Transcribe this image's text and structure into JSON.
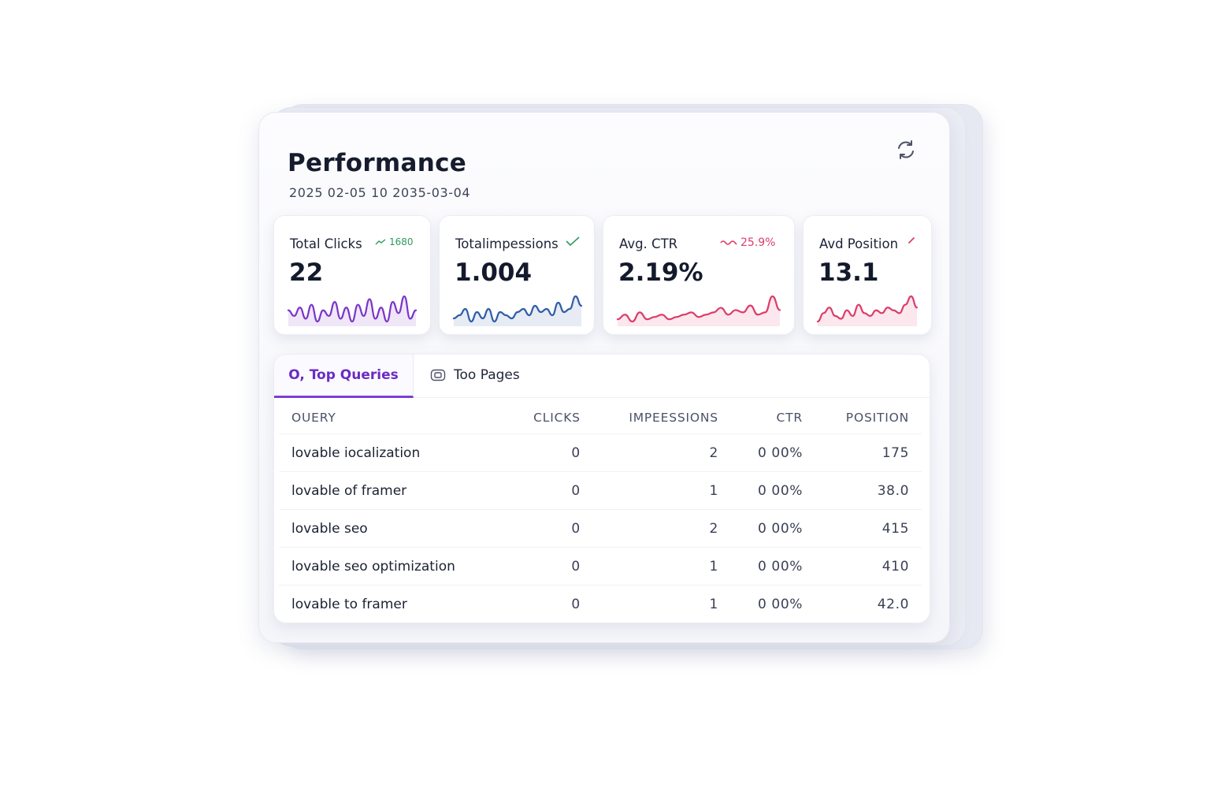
{
  "header": {
    "title": "Performance",
    "date_range": "2025  02-05 10 2035-03-04"
  },
  "kpis": [
    {
      "label": "Total Clicks",
      "value": "22",
      "trend": "1680",
      "color": "#7a34c9",
      "trend_color": "#2e9b5e",
      "series": [
        6,
        4,
        7,
        3,
        8,
        2,
        6,
        4,
        9,
        3,
        7,
        2,
        8,
        4,
        10,
        3,
        7,
        2,
        9,
        5,
        11,
        3,
        6
      ]
    },
    {
      "label": "Totalimpessions",
      "value": "1.004",
      "trend": "",
      "color": "#2f5ea8",
      "trend_color": "#2e9b5e",
      "series": [
        3,
        4,
        6,
        2,
        5,
        3,
        6,
        2,
        5,
        4,
        3,
        5,
        6,
        4,
        7,
        5,
        6,
        4,
        8,
        5,
        6,
        10,
        7
      ]
    },
    {
      "label": "Avg. CTR",
      "value": "2.19%",
      "trend": "25.9%",
      "color": "#dc3d6a",
      "trend_color": "#dc3d6a",
      "series": [
        3,
        5,
        2,
        6,
        3,
        4,
        5,
        3,
        4,
        5,
        6,
        4,
        5,
        6,
        8,
        5,
        7,
        6,
        9,
        5,
        6,
        13,
        7
      ]
    },
    {
      "label": "Avd Position",
      "value": "13.1",
      "trend": "",
      "color": "#dc3d6a",
      "trend_color": "#dc3d6a",
      "series": [
        3,
        6,
        8,
        5,
        4,
        7,
        5,
        9,
        6,
        5,
        7,
        6,
        8,
        7,
        6,
        9,
        12,
        8
      ]
    }
  ],
  "tabs": [
    {
      "label": "O, Top Queries",
      "active": true,
      "icon": "search-icon"
    },
    {
      "label": "Too Pages",
      "active": false,
      "icon": "page-icon"
    }
  ],
  "table": {
    "columns": [
      "OUERY",
      "CLICKS",
      "IMPEESSIONS",
      "CTR",
      "POSITION"
    ],
    "rows": [
      [
        "lovable iocalization",
        "0",
        "2",
        "0 00%",
        "175"
      ],
      [
        "lovable of framer",
        "0",
        "1",
        "0 00%",
        "38.0"
      ],
      [
        "lovable seo",
        "0",
        "2",
        "0 00%",
        "415"
      ],
      [
        "lovable seo optimization",
        "0",
        "1",
        "0 00%",
        "410"
      ],
      [
        "lovable to framer",
        "0",
        "1",
        "0 00%",
        "42.0"
      ]
    ]
  },
  "icons": {
    "refresh": "refresh-icon"
  }
}
